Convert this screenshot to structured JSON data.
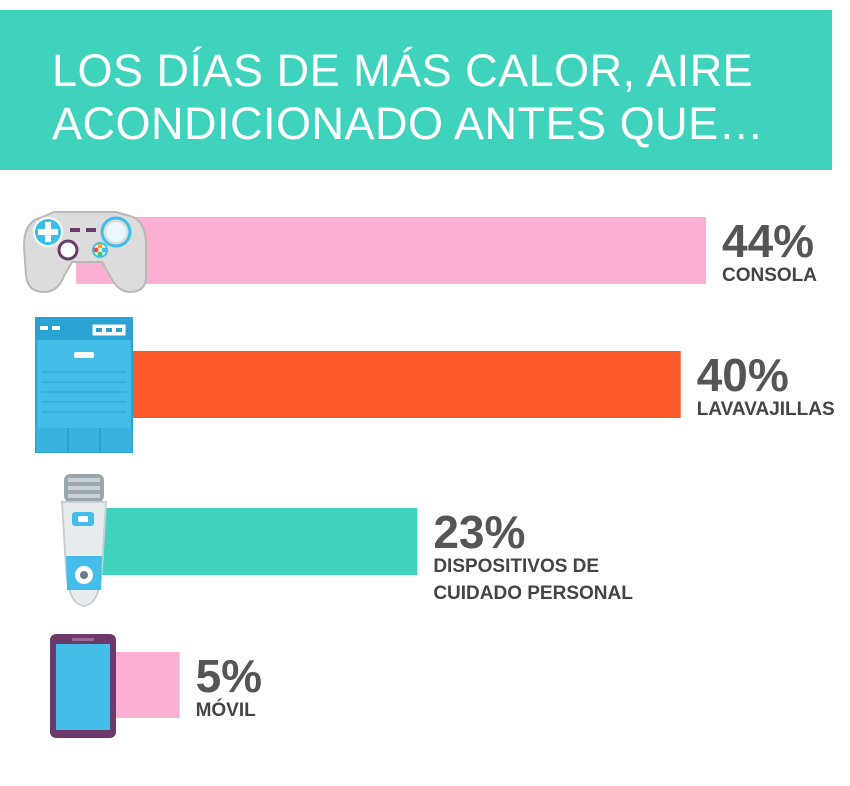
{
  "chart_data": {
    "type": "bar",
    "orientation": "horizontal",
    "title": "LOS DÍAS DE MÁS CALOR, AIRE ACONDICIONADO ANTES QUE…",
    "categories": [
      "CONSOLA",
      "LAVAVAJILLAS",
      "DISPOSITIVOS DE CUIDADO PERSONAL",
      "MÓVIL"
    ],
    "label_lines": [
      [
        "CONSOLA"
      ],
      [
        "LAVAVAJILLAS"
      ],
      [
        "DISPOSITIVOS DE",
        "CUIDADO PERSONAL"
      ],
      [
        "MÓVIL"
      ]
    ],
    "values": [
      44,
      40,
      23,
      5
    ],
    "value_labels": [
      "44%",
      "40%",
      "23%",
      "5%"
    ],
    "unit": "%",
    "colors": [
      "#fbb0d3",
      "#fb5a28",
      "#3fd3be",
      "#fbb0d3"
    ],
    "icons": [
      "game-controller-icon",
      "dishwasher-icon",
      "epilator-icon",
      "smartphone-icon"
    ],
    "grid": false,
    "legend": "none"
  },
  "colors": {
    "banner": "#3fd3be",
    "title_text": "#ffffff",
    "value_text": "#555555",
    "label_text": "#444444"
  }
}
